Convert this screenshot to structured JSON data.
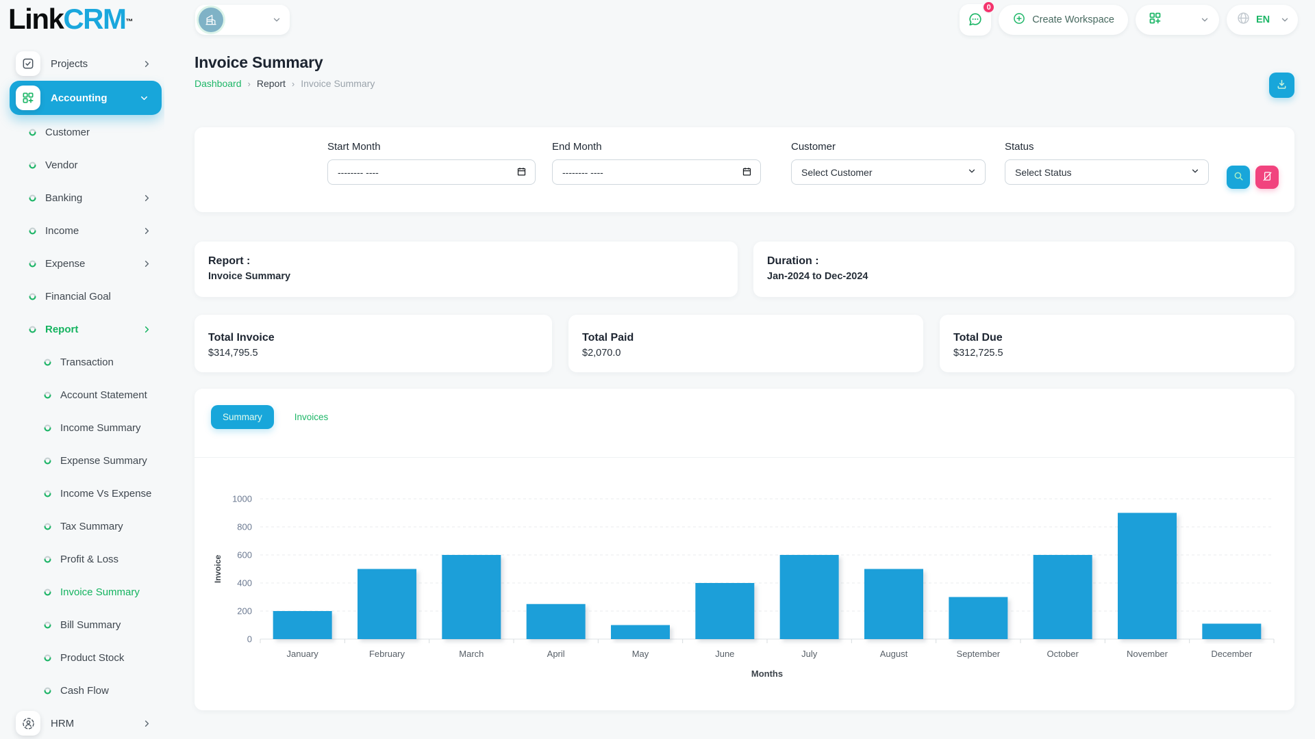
{
  "brand": {
    "word_dark": "Link",
    "word_accent": "CRM",
    "trademark": "™"
  },
  "header": {
    "chat_badge": "0",
    "create_workspace_label": "Create Workspace",
    "language": "EN"
  },
  "sidebar": {
    "items": [
      {
        "label": "Projects",
        "level": 0,
        "icon": "checkbox",
        "chevron": "right",
        "active": false
      },
      {
        "label": "Accounting",
        "level": 0,
        "icon": "grid-plus",
        "chevron": "down",
        "active": true
      },
      {
        "label": "Customer",
        "level": 1
      },
      {
        "label": "Vendor",
        "level": 1
      },
      {
        "label": "Banking",
        "level": 1,
        "chevron": "right"
      },
      {
        "label": "Income",
        "level": 1,
        "chevron": "right"
      },
      {
        "label": "Expense",
        "level": 1,
        "chevron": "right"
      },
      {
        "label": "Financial Goal",
        "level": 1
      },
      {
        "label": "Report",
        "level": 1,
        "chevron": "right",
        "active": true
      },
      {
        "label": "Transaction",
        "level": 2
      },
      {
        "label": "Account Statement",
        "level": 2
      },
      {
        "label": "Income Summary",
        "level": 2
      },
      {
        "label": "Expense Summary",
        "level": 2
      },
      {
        "label": "Income Vs Expense",
        "level": 2
      },
      {
        "label": "Tax Summary",
        "level": 2
      },
      {
        "label": "Profit & Loss",
        "level": 2
      },
      {
        "label": "Invoice Summary",
        "level": 2,
        "active": true
      },
      {
        "label": "Bill Summary",
        "level": 2
      },
      {
        "label": "Product Stock",
        "level": 2
      },
      {
        "label": "Cash Flow",
        "level": 2
      },
      {
        "label": "HRM",
        "level": 0,
        "icon": "hrm",
        "chevron": "right"
      }
    ]
  },
  "page": {
    "title": "Invoice Summary",
    "breadcrumb": [
      "Dashboard",
      "Report",
      "Invoice Summary"
    ]
  },
  "filters": {
    "start_month": {
      "label": "Start Month",
      "placeholder": "-------- ----"
    },
    "end_month": {
      "label": "End Month",
      "placeholder": "-------- ----"
    },
    "customer": {
      "label": "Customer",
      "value": "Select Customer"
    },
    "status": {
      "label": "Status",
      "value": "Select Status"
    }
  },
  "report_card": {
    "label": "Report :",
    "value": "Invoice Summary"
  },
  "duration_card": {
    "label": "Duration :",
    "value": "Jan-2024 to Dec-2024"
  },
  "totals": [
    {
      "label": "Total Invoice",
      "value": "$314,795.5"
    },
    {
      "label": "Total Paid",
      "value": "$2,070.0"
    },
    {
      "label": "Total Due",
      "value": "$312,725.5"
    }
  ],
  "tabs": [
    {
      "label": "Summary",
      "active": true
    },
    {
      "label": "Invoices",
      "active": false
    }
  ],
  "chart_data": {
    "type": "bar",
    "categories": [
      "January",
      "February",
      "March",
      "April",
      "May",
      "June",
      "July",
      "August",
      "September",
      "October",
      "November",
      "December"
    ],
    "values": [
      200,
      500,
      600,
      250,
      100,
      400,
      600,
      500,
      300,
      600,
      900,
      110
    ],
    "title": "",
    "xlabel": "Months",
    "ylabel": "Invoice",
    "ylim": [
      0,
      1000
    ],
    "ytick_step": 200,
    "bar_color": "#1b9fd9",
    "grid": true,
    "legend": false
  },
  "colors": {
    "accent_blue": "#18a6da",
    "accent_green": "#1db667",
    "accent_pink": "#f1437e"
  }
}
